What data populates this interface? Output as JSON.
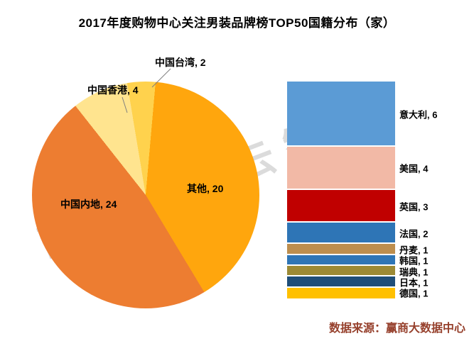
{
  "watermark": {
    "text": "商业地产云智库",
    "color": "rgba(190,190,190,0.55)"
  },
  "source": {
    "text": "数据来源：赢商大数据中心",
    "color": "#96402C"
  },
  "chart_data": {
    "type": "pie",
    "subtype": "bar-of-pie",
    "title": "2017年度购物中心关注男装品牌榜TOP50国籍分布（家）",
    "total": 50,
    "legend_position": "none",
    "pie_start_angle_deg": 5,
    "pie_slices": [
      {
        "label": "其他",
        "value": 20,
        "color": "#FFA60D",
        "display": "其他, 20"
      },
      {
        "label": "中国内地",
        "value": 24,
        "color": "#ED7D31",
        "display": "中国内地, 24"
      },
      {
        "label": "中国香港",
        "value": 4,
        "color": "#FFE48F",
        "display": "中国香港, 4"
      },
      {
        "label": "中国台湾",
        "value": 2,
        "color": "#FFD24D",
        "display": "中国台湾, 2"
      }
    ],
    "bar_breakdown": [
      {
        "label": "意大利",
        "value": 6,
        "color": "#5B9BD5",
        "display": "意大利, 6"
      },
      {
        "label": "美国",
        "value": 4,
        "color": "#F2B9A6",
        "display": "美国, 4"
      },
      {
        "label": "英国",
        "value": 3,
        "color": "#C00000",
        "display": "英国, 3"
      },
      {
        "label": "法国",
        "value": 2,
        "color": "#2E75B6",
        "display": "法国, 2"
      },
      {
        "label": "丹麦",
        "value": 1,
        "color": "#BD8E4E",
        "display": "丹麦, 1"
      },
      {
        "label": "韩国",
        "value": 1,
        "color": "#2E75B6",
        "display": "韩国, 1"
      },
      {
        "label": "瑞典",
        "value": 1,
        "color": "#9C8A35",
        "display": "瑞典, 1"
      },
      {
        "label": "日本",
        "value": 1,
        "color": "#1F4E79",
        "display": "日本, 1"
      },
      {
        "label": "德国",
        "value": 1,
        "color": "#FFC000",
        "display": "德国, 1"
      }
    ]
  }
}
